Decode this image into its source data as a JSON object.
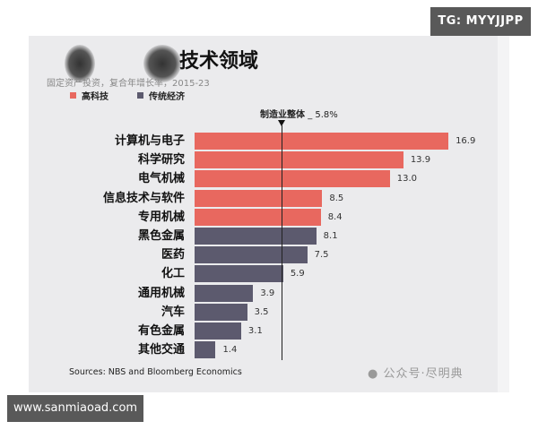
{
  "badges": {
    "top_right": "TG: MYYJJPP",
    "bottom_left": "www.sanmiaoad.com"
  },
  "header": {
    "title": "技术领域",
    "subtitle": "固定资产投资，复合年增长率，2015-23"
  },
  "legend": [
    {
      "label": "高科技",
      "color": "#e8685f"
    },
    {
      "label": "传统经济",
      "color": "#5c5a6e"
    }
  ],
  "reference": {
    "label": "制造业整体",
    "value_text": "_ 5.8%",
    "value": 5.8
  },
  "footer": {
    "source": "Sources: NBS and Bloomberg Economics",
    "watermark": "公众号·尽明典"
  },
  "chart_data": {
    "type": "bar",
    "orientation": "horizontal",
    "title": "技术领域",
    "subtitle": "固定资产投资，复合年增长率，2015-23",
    "xlabel": "",
    "ylabel": "",
    "grid": false,
    "legend_position": "top-left",
    "reference_line": {
      "label": "制造业整体",
      "value": 5.8
    },
    "categories": [
      "计算机与电子",
      "科学研究",
      "电气机械",
      "信息技术与软件",
      "专用机械",
      "黑色金属",
      "医药",
      "化工",
      "通用机械",
      "汽车",
      "有色金属",
      "其他交通"
    ],
    "values": [
      16.9,
      13.9,
      13.0,
      8.5,
      8.4,
      8.1,
      7.5,
      5.9,
      3.9,
      3.5,
      3.1,
      1.4
    ],
    "value_labels": [
      "16.9",
      "13.9",
      "13.0",
      "8.5",
      "8.4",
      "8.1",
      "7.5",
      "5.9",
      "3.9",
      "3.5",
      "3.1",
      "1.4"
    ],
    "groups": [
      "高科技",
      "高科技",
      "高科技",
      "高科技",
      "高科技",
      "传统经济",
      "传统经济",
      "传统经济",
      "传统经济",
      "传统经济",
      "传统经济",
      "传统经济"
    ],
    "series": [
      {
        "name": "高科技",
        "color": "#e8685f",
        "categories": [
          "计算机与电子",
          "科学研究",
          "电气机械",
          "信息技术与软件",
          "专用机械"
        ],
        "values": [
          16.9,
          13.9,
          13.0,
          8.5,
          8.4
        ]
      },
      {
        "name": "传统经济",
        "color": "#5c5a6e",
        "categories": [
          "黑色金属",
          "医药",
          "化工",
          "通用机械",
          "汽车",
          "有色金属",
          "其他交通"
        ],
        "values": [
          8.1,
          7.5,
          5.9,
          3.9,
          3.5,
          3.1,
          1.4
        ]
      }
    ],
    "source": "Sources: NBS and Bloomberg Economics"
  }
}
